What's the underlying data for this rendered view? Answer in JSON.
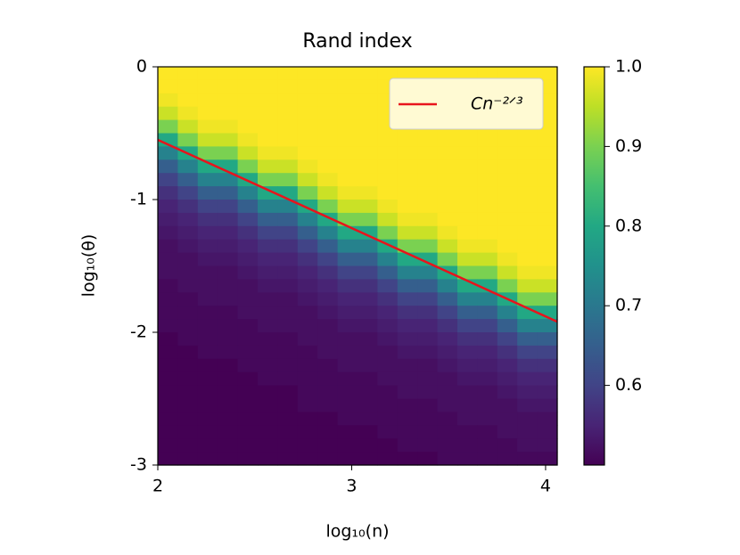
{
  "chart_data": {
    "type": "heatmap",
    "title": "Rand index",
    "x_label": "log₁₀(n)",
    "y_label": "log₁₀(θ)",
    "xlim": [
      2,
      4.06
    ],
    "ylim": [
      -3,
      0
    ],
    "xticks": [
      2,
      3,
      4
    ],
    "yticks": [
      0,
      -1,
      -2,
      -3
    ],
    "colormap": "viridis",
    "clim": [
      0.5,
      1.0
    ],
    "cticks": [
      {
        "value": 1,
        "label": "1.0"
      },
      0.9,
      0.8,
      0.7,
      0.6
    ],
    "legend": "upper right",
    "series": [
      {
        "name": "Cn⁻²ᐟ³",
        "color": "#e8141c",
        "x": [
          2,
          4.06
        ],
        "values": [
          -0.55,
          -1.92
        ]
      }
    ],
    "z": [
      [
        1,
        1,
        1,
        1,
        1,
        1,
        1,
        1,
        1,
        1,
        1,
        1,
        1,
        1,
        1,
        1,
        1,
        1,
        1,
        1
      ],
      [
        1,
        1,
        1,
        1,
        1,
        1,
        1,
        1,
        1,
        1,
        1,
        1,
        1,
        1,
        1,
        1,
        1,
        1,
        1,
        1
      ],
      [
        0.99,
        1,
        1,
        1,
        1,
        1,
        1,
        1,
        1,
        1,
        1,
        1,
        1,
        1,
        1,
        1,
        1,
        1,
        1,
        1
      ],
      [
        0.96,
        0.99,
        1,
        1,
        1,
        1,
        1,
        1,
        1,
        1,
        1,
        1,
        1,
        1,
        1,
        1,
        1,
        1,
        1,
        1
      ],
      [
        0.9,
        0.96,
        0.99,
        0.99,
        1,
        1,
        1,
        1,
        1,
        1,
        1,
        1,
        1,
        1,
        1,
        1,
        1,
        1,
        1,
        1
      ],
      [
        0.8,
        0.9,
        0.96,
        0.96,
        0.99,
        1,
        1,
        1,
        1,
        1,
        1,
        1,
        1,
        1,
        1,
        1,
        1,
        1,
        1,
        1
      ],
      [
        0.72,
        0.8,
        0.9,
        0.9,
        0.96,
        0.99,
        0.99,
        1,
        1,
        1,
        1,
        1,
        1,
        1,
        1,
        1,
        1,
        1,
        1,
        1
      ],
      [
        0.65,
        0.72,
        0.8,
        0.8,
        0.9,
        0.96,
        0.96,
        0.99,
        1,
        1,
        1,
        1,
        1,
        1,
        1,
        1,
        1,
        1,
        1,
        1
      ],
      [
        0.6,
        0.65,
        0.72,
        0.72,
        0.8,
        0.9,
        0.9,
        0.96,
        0.99,
        1,
        1,
        1,
        1,
        1,
        1,
        1,
        1,
        1,
        1,
        1
      ],
      [
        0.57,
        0.6,
        0.65,
        0.65,
        0.72,
        0.8,
        0.8,
        0.9,
        0.96,
        0.99,
        0.99,
        1,
        1,
        1,
        1,
        1,
        1,
        1,
        1,
        1
      ],
      [
        0.55,
        0.57,
        0.6,
        0.6,
        0.65,
        0.72,
        0.72,
        0.8,
        0.9,
        0.96,
        0.96,
        0.99,
        1,
        1,
        1,
        1,
        1,
        1,
        1,
        1
      ],
      [
        0.54,
        0.55,
        0.57,
        0.57,
        0.6,
        0.65,
        0.65,
        0.72,
        0.8,
        0.9,
        0.9,
        0.96,
        0.99,
        0.99,
        1,
        1,
        1,
        1,
        1,
        1
      ],
      [
        0.53,
        0.54,
        0.55,
        0.55,
        0.57,
        0.6,
        0.6,
        0.65,
        0.72,
        0.8,
        0.8,
        0.9,
        0.96,
        0.96,
        0.99,
        1,
        1,
        1,
        1,
        1
      ],
      [
        0.52,
        0.53,
        0.54,
        0.54,
        0.55,
        0.57,
        0.57,
        0.6,
        0.65,
        0.72,
        0.72,
        0.8,
        0.9,
        0.9,
        0.96,
        0.99,
        0.99,
        1,
        1,
        1
      ],
      [
        0.52,
        0.52,
        0.53,
        0.53,
        0.54,
        0.55,
        0.55,
        0.57,
        0.6,
        0.65,
        0.65,
        0.72,
        0.8,
        0.8,
        0.9,
        0.96,
        0.96,
        0.99,
        1,
        1
      ],
      [
        0.52,
        0.52,
        0.52,
        0.52,
        0.53,
        0.54,
        0.54,
        0.55,
        0.57,
        0.6,
        0.6,
        0.65,
        0.72,
        0.72,
        0.8,
        0.9,
        0.9,
        0.96,
        0.99,
        0.99
      ],
      [
        0.51,
        0.52,
        0.52,
        0.52,
        0.52,
        0.53,
        0.53,
        0.54,
        0.55,
        0.57,
        0.57,
        0.6,
        0.65,
        0.65,
        0.72,
        0.8,
        0.8,
        0.9,
        0.96,
        0.96
      ],
      [
        0.51,
        0.51,
        0.52,
        0.52,
        0.52,
        0.52,
        0.52,
        0.53,
        0.54,
        0.55,
        0.55,
        0.57,
        0.6,
        0.6,
        0.65,
        0.72,
        0.72,
        0.8,
        0.9,
        0.9
      ],
      [
        0.51,
        0.51,
        0.51,
        0.51,
        0.52,
        0.52,
        0.52,
        0.52,
        0.53,
        0.54,
        0.54,
        0.55,
        0.57,
        0.57,
        0.6,
        0.65,
        0.65,
        0.72,
        0.8,
        0.8
      ],
      [
        0.51,
        0.51,
        0.51,
        0.51,
        0.51,
        0.52,
        0.52,
        0.52,
        0.52,
        0.53,
        0.53,
        0.54,
        0.55,
        0.55,
        0.57,
        0.6,
        0.6,
        0.65,
        0.72,
        0.72
      ],
      [
        0.5,
        0.51,
        0.51,
        0.51,
        0.51,
        0.51,
        0.51,
        0.52,
        0.52,
        0.52,
        0.52,
        0.53,
        0.54,
        0.54,
        0.55,
        0.57,
        0.57,
        0.6,
        0.65,
        0.65
      ],
      [
        0.5,
        0.5,
        0.51,
        0.51,
        0.51,
        0.51,
        0.51,
        0.51,
        0.52,
        0.52,
        0.52,
        0.52,
        0.53,
        0.53,
        0.54,
        0.55,
        0.55,
        0.57,
        0.6,
        0.6
      ],
      [
        0.5,
        0.5,
        0.5,
        0.5,
        0.51,
        0.51,
        0.51,
        0.51,
        0.51,
        0.52,
        0.52,
        0.52,
        0.52,
        0.52,
        0.53,
        0.54,
        0.54,
        0.55,
        0.57,
        0.57
      ],
      [
        0.5,
        0.5,
        0.5,
        0.5,
        0.5,
        0.51,
        0.51,
        0.51,
        0.51,
        0.51,
        0.51,
        0.52,
        0.52,
        0.52,
        0.52,
        0.53,
        0.53,
        0.54,
        0.55,
        0.55
      ],
      [
        0.5,
        0.5,
        0.5,
        0.5,
        0.5,
        0.5,
        0.5,
        0.51,
        0.51,
        0.51,
        0.51,
        0.51,
        0.52,
        0.52,
        0.52,
        0.52,
        0.52,
        0.53,
        0.54,
        0.54
      ],
      [
        0.5,
        0.5,
        0.5,
        0.5,
        0.5,
        0.5,
        0.5,
        0.51,
        0.51,
        0.51,
        0.51,
        0.51,
        0.51,
        0.51,
        0.52,
        0.52,
        0.52,
        0.52,
        0.53,
        0.53
      ],
      [
        0.5,
        0.5,
        0.5,
        0.5,
        0.5,
        0.5,
        0.5,
        0.5,
        0.5,
        0.51,
        0.51,
        0.51,
        0.51,
        0.51,
        0.51,
        0.52,
        0.52,
        0.52,
        0.52,
        0.52
      ],
      [
        0.5,
        0.5,
        0.5,
        0.5,
        0.5,
        0.5,
        0.5,
        0.5,
        0.5,
        0.5,
        0.5,
        0.51,
        0.51,
        0.51,
        0.51,
        0.51,
        0.51,
        0.52,
        0.52,
        0.52
      ],
      [
        0.5,
        0.5,
        0.5,
        0.5,
        0.5,
        0.5,
        0.5,
        0.5,
        0.5,
        0.5,
        0.5,
        0.5,
        0.51,
        0.51,
        0.51,
        0.51,
        0.51,
        0.51,
        0.52,
        0.52
      ],
      [
        0.5,
        0.5,
        0.5,
        0.5,
        0.5,
        0.5,
        0.5,
        0.5,
        0.5,
        0.5,
        0.5,
        0.5,
        0.5,
        0.5,
        0.51,
        0.51,
        0.51,
        0.51,
        0.51,
        0.51
      ]
    ]
  }
}
